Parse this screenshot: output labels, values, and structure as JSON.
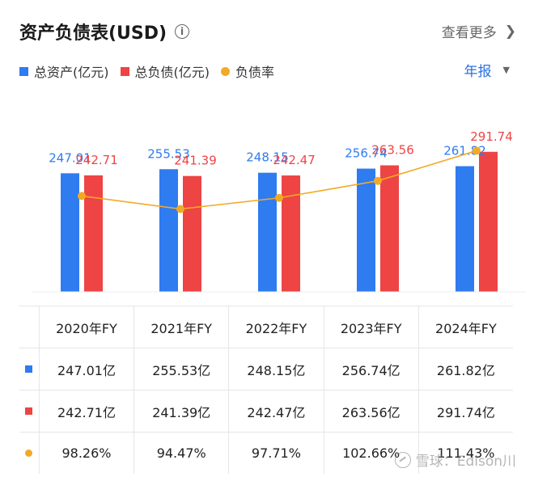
{
  "header": {
    "title": "资产负债表(USD)",
    "info_icon": "info-icon",
    "more_label": "查看更多",
    "more_icon": "chevron-right-icon"
  },
  "period_selector": {
    "label": "年报",
    "icon": "caret-down-icon"
  },
  "colors": {
    "assets": "#2f7bf0",
    "liabilities": "#ee4444",
    "ratio": "#f2aa26"
  },
  "chart_data": {
    "type": "bar",
    "categories": [
      "2020年FY",
      "2021年FY",
      "2022年FY",
      "2023年FY",
      "2024年FY"
    ],
    "series": [
      {
        "name": "总资产(亿元)",
        "type": "bar",
        "values": [
          247.01,
          255.53,
          248.15,
          256.74,
          261.82
        ]
      },
      {
        "name": "总负债(亿元)",
        "type": "bar",
        "values": [
          242.71,
          241.39,
          242.47,
          263.56,
          291.74
        ]
      },
      {
        "name": "负债率",
        "type": "line",
        "values": [
          98.26,
          94.47,
          97.71,
          102.66,
          111.43
        ]
      }
    ],
    "value_labels": {
      "assets": [
        "247.01",
        "255.53",
        "248.15",
        "256.74",
        "261.82"
      ],
      "liabilities": [
        "242.71",
        "241.39",
        "242.47",
        "263.56",
        "291.74"
      ]
    },
    "legend_position": "top-left",
    "grid": false
  },
  "table": {
    "headers": [
      "2020年FY",
      "2021年FY",
      "2022年FY",
      "2023年FY",
      "2024年FY"
    ],
    "rows": [
      {
        "marker": "square",
        "color": "#2f7bf0",
        "values": [
          "247.01亿",
          "255.53亿",
          "248.15亿",
          "256.74亿",
          "261.82亿"
        ]
      },
      {
        "marker": "square",
        "color": "#ee4444",
        "values": [
          "242.71亿",
          "241.39亿",
          "242.47亿",
          "263.56亿",
          "291.74亿"
        ]
      },
      {
        "marker": "dot",
        "color": "#f2aa26",
        "values": [
          "98.26%",
          "94.47%",
          "97.71%",
          "102.66%",
          "111.43%"
        ]
      }
    ]
  },
  "watermark": {
    "text": "雪球：Edison川"
  }
}
